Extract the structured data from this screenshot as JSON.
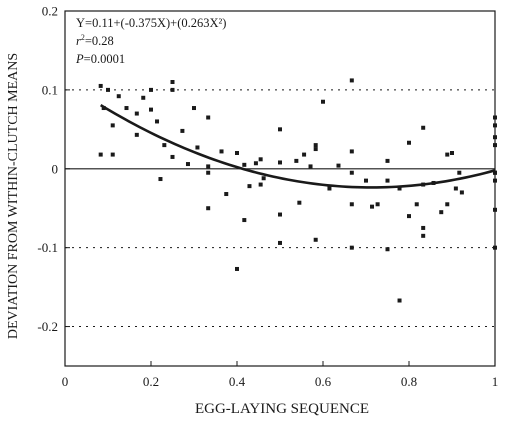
{
  "chart_data": {
    "type": "scatter",
    "xlabel": "EGG-LAYING SEQUENCE",
    "ylabel": "DEVIATION FROM WITHIN-CLUTCH MEANS",
    "xlim": [
      0,
      1
    ],
    "ylim": [
      -0.25,
      0.2
    ],
    "xticks": [
      0,
      0.2,
      0.4,
      0.6,
      0.8,
      1
    ],
    "xtick_labels": [
      "0",
      "0.2",
      "0.4",
      "0.6",
      "0.8",
      "1"
    ],
    "yticks": [
      0.2,
      0.1,
      0,
      -0.1,
      -0.2
    ],
    "ytick_labels": [
      "0.2",
      "0.1",
      "0",
      "-0.1",
      "-0.2"
    ],
    "dotted_gridlines_y": [
      0.1,
      -0.1,
      -0.2
    ],
    "zero_line": true,
    "annotation": {
      "equation": "Y=0.11+(-0.375X)+(0.263X²)",
      "r2_symbol": "r",
      "r2_sup": "2",
      "r2_value": "=0.28",
      "p_symbol": "P",
      "p_value": "=0.0001"
    },
    "fit": {
      "intercept": 0.11,
      "b1": -0.375,
      "b2": 0.263,
      "x_range": [
        0.083,
        1.0
      ]
    },
    "points": [
      {
        "x": 0.083,
        "y": 0.105
      },
      {
        "x": 0.083,
        "y": 0.018
      },
      {
        "x": 0.09,
        "y": 0.077
      },
      {
        "x": 0.1,
        "y": 0.1
      },
      {
        "x": 0.111,
        "y": 0.055
      },
      {
        "x": 0.111,
        "y": 0.018
      },
      {
        "x": 0.125,
        "y": 0.092
      },
      {
        "x": 0.143,
        "y": 0.077
      },
      {
        "x": 0.167,
        "y": 0.043
      },
      {
        "x": 0.167,
        "y": 0.07
      },
      {
        "x": 0.182,
        "y": 0.09
      },
      {
        "x": 0.2,
        "y": 0.075
      },
      {
        "x": 0.2,
        "y": 0.1
      },
      {
        "x": 0.214,
        "y": 0.06
      },
      {
        "x": 0.222,
        "y": -0.013
      },
      {
        "x": 0.231,
        "y": 0.03
      },
      {
        "x": 0.25,
        "y": 0.11
      },
      {
        "x": 0.25,
        "y": 0.015
      },
      {
        "x": 0.25,
        "y": 0.1
      },
      {
        "x": 0.273,
        "y": 0.048
      },
      {
        "x": 0.286,
        "y": 0.006
      },
      {
        "x": 0.3,
        "y": 0.077
      },
      {
        "x": 0.308,
        "y": 0.027
      },
      {
        "x": 0.333,
        "y": 0.065
      },
      {
        "x": 0.333,
        "y": -0.005
      },
      {
        "x": 0.333,
        "y": 0.003
      },
      {
        "x": 0.333,
        "y": -0.05
      },
      {
        "x": 0.364,
        "y": 0.022
      },
      {
        "x": 0.375,
        "y": -0.032
      },
      {
        "x": 0.4,
        "y": 0.02
      },
      {
        "x": 0.4,
        "y": -0.127
      },
      {
        "x": 0.417,
        "y": 0.005
      },
      {
        "x": 0.417,
        "y": -0.065
      },
      {
        "x": 0.429,
        "y": -0.022
      },
      {
        "x": 0.444,
        "y": 0.007
      },
      {
        "x": 0.455,
        "y": 0.012
      },
      {
        "x": 0.455,
        "y": -0.02
      },
      {
        "x": 0.462,
        "y": -0.012
      },
      {
        "x": 0.5,
        "y": 0.05
      },
      {
        "x": 0.5,
        "y": -0.058
      },
      {
        "x": 0.5,
        "y": -0.094
      },
      {
        "x": 0.5,
        "y": 0.008
      },
      {
        "x": 0.538,
        "y": 0.01
      },
      {
        "x": 0.545,
        "y": -0.043
      },
      {
        "x": 0.556,
        "y": 0.018
      },
      {
        "x": 0.571,
        "y": 0.003
      },
      {
        "x": 0.583,
        "y": 0.03
      },
      {
        "x": 0.583,
        "y": 0.025
      },
      {
        "x": 0.583,
        "y": -0.09
      },
      {
        "x": 0.6,
        "y": 0.085
      },
      {
        "x": 0.615,
        "y": -0.025
      },
      {
        "x": 0.636,
        "y": 0.004
      },
      {
        "x": 0.667,
        "y": 0.112
      },
      {
        "x": 0.667,
        "y": 0.022
      },
      {
        "x": 0.667,
        "y": -0.045
      },
      {
        "x": 0.667,
        "y": -0.1
      },
      {
        "x": 0.667,
        "y": -0.005
      },
      {
        "x": 0.7,
        "y": -0.015
      },
      {
        "x": 0.714,
        "y": -0.048
      },
      {
        "x": 0.727,
        "y": -0.045
      },
      {
        "x": 0.75,
        "y": 0.01
      },
      {
        "x": 0.75,
        "y": -0.015
      },
      {
        "x": 0.75,
        "y": -0.102
      },
      {
        "x": 0.778,
        "y": -0.167
      },
      {
        "x": 0.778,
        "y": -0.025
      },
      {
        "x": 0.8,
        "y": 0.033
      },
      {
        "x": 0.8,
        "y": -0.06
      },
      {
        "x": 0.818,
        "y": -0.045
      },
      {
        "x": 0.833,
        "y": 0.052
      },
      {
        "x": 0.833,
        "y": -0.02
      },
      {
        "x": 0.833,
        "y": -0.075
      },
      {
        "x": 0.833,
        "y": -0.085
      },
      {
        "x": 0.857,
        "y": -0.018
      },
      {
        "x": 0.875,
        "y": -0.055
      },
      {
        "x": 0.889,
        "y": 0.018
      },
      {
        "x": 0.889,
        "y": -0.045
      },
      {
        "x": 0.9,
        "y": 0.02
      },
      {
        "x": 0.909,
        "y": -0.025
      },
      {
        "x": 0.917,
        "y": -0.005
      },
      {
        "x": 0.923,
        "y": -0.03
      },
      {
        "x": 1.0,
        "y": 0.065
      },
      {
        "x": 1.0,
        "y": 0.055
      },
      {
        "x": 1.0,
        "y": 0.04
      },
      {
        "x": 1.0,
        "y": 0.03
      },
      {
        "x": 1.0,
        "y": -0.005
      },
      {
        "x": 1.0,
        "y": -0.015
      },
      {
        "x": 1.0,
        "y": -0.052
      },
      {
        "x": 1.0,
        "y": -0.1
      },
      {
        "x": 1.0,
        "y": -0.005
      }
    ],
    "grid": false,
    "colors": {
      "ink": "#1a1a1a",
      "background": "#ffffff"
    }
  }
}
